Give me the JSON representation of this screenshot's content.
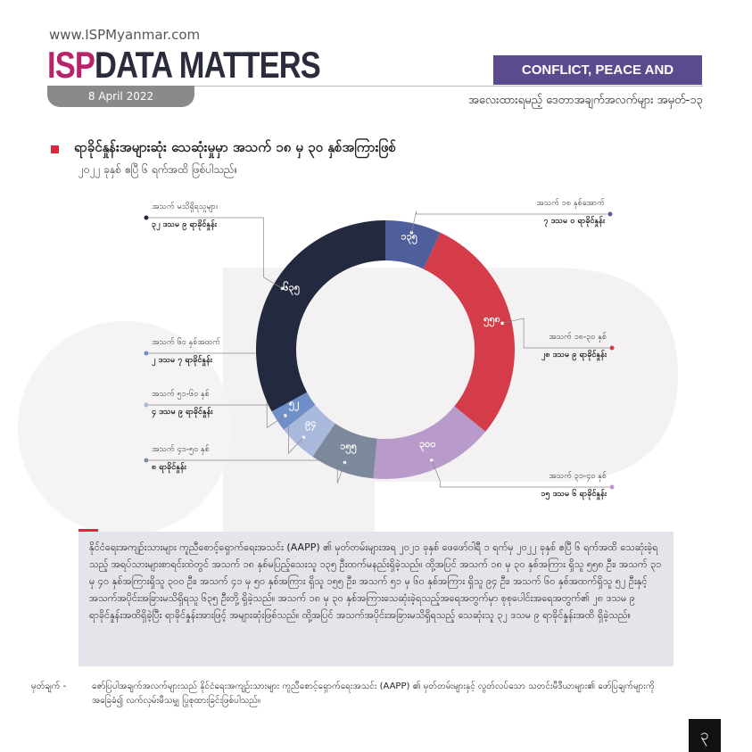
{
  "header": {
    "url": "www.ISPMyanmar.com",
    "brand_a": "ISP",
    "brand_b": "DATA MATTERS",
    "date": "8 April 2022",
    "section": "CONFLICT, PEACE AND SECURITY",
    "series_title": "အလေးထားရမည့် ဒေတာအချက်အလက်များ အမှတ်-၁၃"
  },
  "heading": "ရာခိုင်နှုန်းအများဆုံး သေဆုံးမှုမှာ အသက် ၁၈ မှ ၃၀ နှစ်အကြားဖြစ်",
  "subheading": "၂၀၂၂ ခုနှစ် ဧပြီ ၆ ရက်အထိ ဖြစ်ပါသည်။",
  "chart_data": {
    "type": "pie",
    "donut": true,
    "categories": [
      "အသက် ၁၈ နှစ်အောက်",
      "အသက် ၁၈-၃၀ နှစ်",
      "အသက် ၃၁-၄၀ နှစ်",
      "အသက် ၄၁-၅၀ နှစ်",
      "အသက် ၅၁-၆၀ နှစ်",
      "အသက် ၆၀ နှစ်အထက်",
      "အသက် မသိရှိရသူများ"
    ],
    "values": [
      135,
      558,
      300,
      155,
      94,
      52,
      635
    ],
    "value_labels": [
      "၁၃၅",
      "၅၅၈",
      "၃၀၀",
      "၁၅၅",
      "၉၄",
      "၅၂",
      "၆၃၅"
    ],
    "percent_labels": [
      "၇ ဒသမ ၀ ရာခိုင်နှုန်း",
      "၂၈ ဒသမ ၉ ရာခိုင်နှုန်း",
      "၁၅ ဒသမ ၆ ရာခိုင်နှုန်း",
      "၈ ရာခိုင်နှုန်း",
      "၄ ဒသမ ၉ ရာခိုင်နှုန်း",
      "၂ ဒသမ ၇ ရာခိုင်နှုန်း",
      "၃၂ ဒသမ ၉ ရာခိုင်နှုန်း"
    ],
    "colors": [
      "#4f5f9c",
      "#d33c48",
      "#b99bcb",
      "#7c899c",
      "#a9b9dc",
      "#6f8fc8",
      "#232a40"
    ]
  },
  "body_text": "နိုင်ငံရေးအကျဉ်းသားများ ကူညီစောင့်ရှောက်ရေးအသင်း (AAPP) ၏ မှတ်တမ်းများအရ ၂၀၂၁ ခုနှစ် ဖေဖော်ဝါရီ ၁ ရက်မှ ၂၀၂၂ ခုနှစ် ဧပြီ ၆ ရက်အထိ သေဆုံးခဲ့ရသည့် အရပ်သားများစာရင်းထဲတွင် အသက် ၁၈ နှစ်မပြည့်သေးသူ ၁၃၅ ဦးထက်မနည်းရှိခဲ့သည်။ ထို့အပြင် အသက် ၁၈ မှ ၃၀ နှစ်အကြား ရှိသူ ၅၅၈ ဦး၊ အသက် ၃၁ မှ ၄၀ နှစ်အကြားရှိသူ ၃၀၀ ဦး၊ အသက် ၄၁ မှ ၅၀ နှစ်အကြား ရှိသူ ၁၅၅ ဦး၊ အသက် ၅၁ မှ ၆၀ နှစ်အကြား ရှိသူ ၉၄ ဦး၊ အသက် ၆၀ နှစ်အထက်ရှိသူ ၅၂ ဦးနှင့် အသက်အပိုင်းအခြားမသိရှိရသူ ၆၃၅ ဦးတို့ ရှိခဲ့သည်။ အသက် ၁၈ မှ ၃၀ နှစ်အကြားသေဆုံးခဲ့ရသည့်အရေအတွက်မှာ စုစုပေါင်းအရေအတွက်၏ ၂၈ ဒသမ ၉ ရာခိုင်နှုန်းအထိရှိခဲ့ပြီး ရာခိုင်နှုန်းအားဖြင့် အများဆုံးဖြစ်သည်။ ထို့အပြင် အသက်အပိုင်းအခြားမသိရှိရသည့် သေဆုံးသူ ၃၂ ဒသမ ၉ ရာခိုင်နှုန်းအထိ ရှိခဲ့သည်။",
  "note_label": "မှတ်ချက် -",
  "note_text": "ဇော်ပြပါအချက်အလက်များသည် နိုင်ငံရေးအကျဉ်းသားများ ကူညီစောင့်ရှောက်ရေးအသင်း (AAPP) ၏ မှတ်တမ်းများနှင့် လွတ်လပ်သော သတင်းမီဒီယာများ၏ ဖော်ပြချက်များကို အခြေခံ၍ လက်လှမ်းမီသမျှ ပြုစုထားခြင်းဖြစ်ပါသည်။",
  "page_number": "၃"
}
